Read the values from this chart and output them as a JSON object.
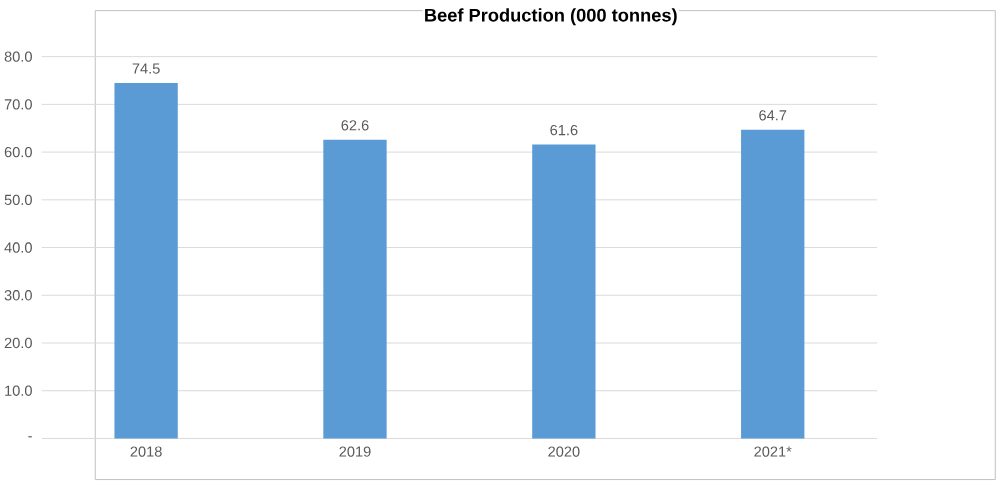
{
  "chart_data": {
    "type": "bar",
    "title": "Beef Production (000 tonnes)",
    "categories": [
      "2018",
      "2019",
      "2020",
      "2021*"
    ],
    "values": [
      74.5,
      62.6,
      61.6,
      64.7
    ],
    "color": "#5b9bd5",
    "ylim": [
      0,
      80
    ],
    "yticks": [
      {
        "value": 0,
        "label": "-"
      },
      {
        "value": 10,
        "label": "10.0"
      },
      {
        "value": 20,
        "label": "20.0"
      },
      {
        "value": 30,
        "label": "30.0"
      },
      {
        "value": 40,
        "label": "40.0"
      },
      {
        "value": 50,
        "label": "50.0"
      },
      {
        "value": 60,
        "label": "60.0"
      },
      {
        "value": 70,
        "label": "70.0"
      },
      {
        "value": 80,
        "label": "80.0"
      }
    ],
    "grid": "y",
    "data_labels": true
  }
}
